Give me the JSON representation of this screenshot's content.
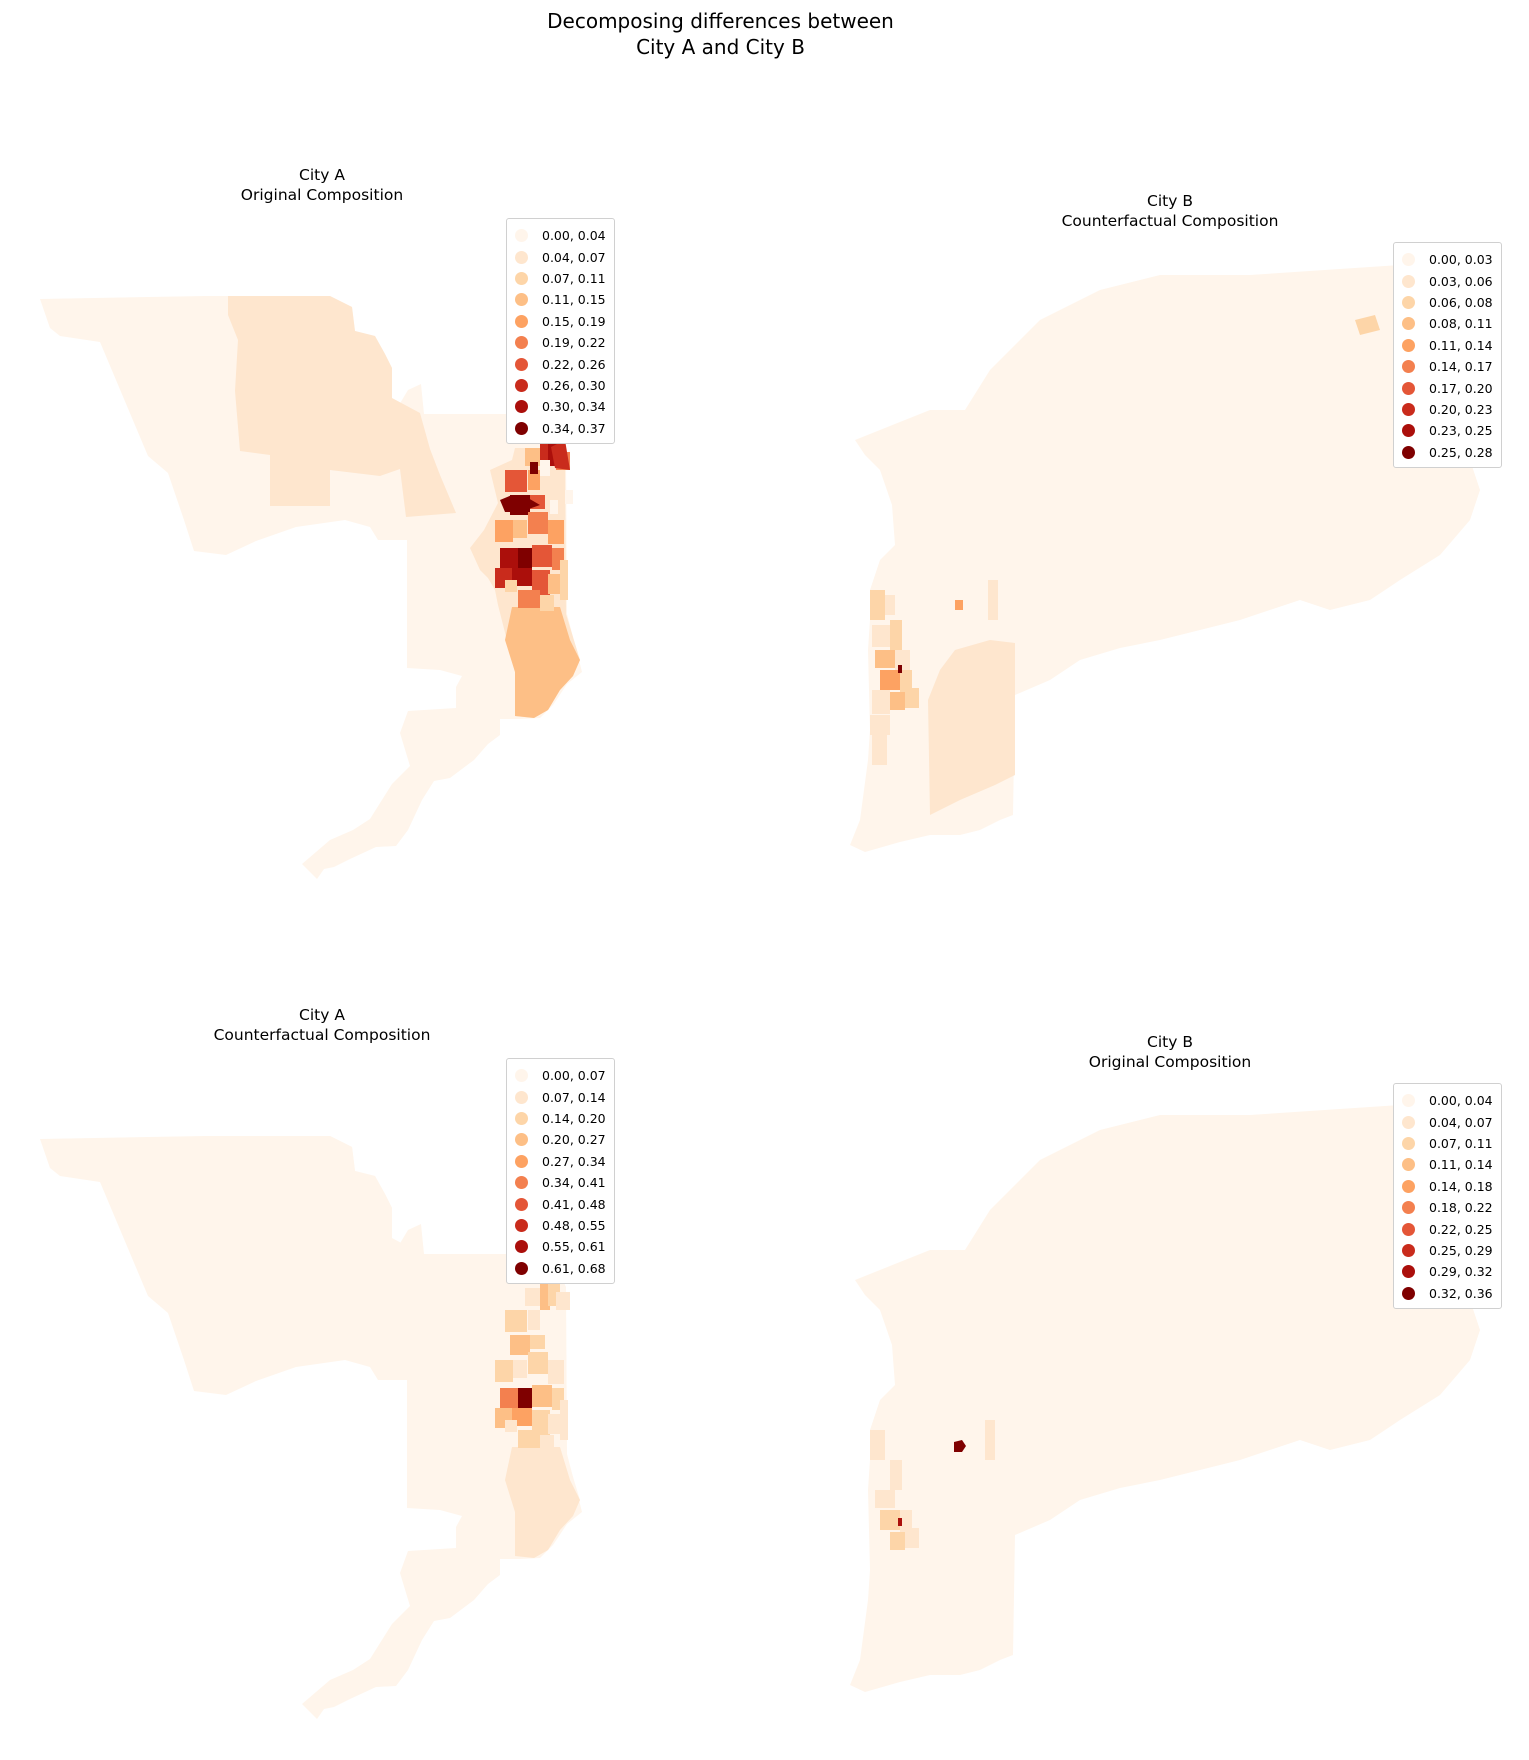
{
  "title_line1": "Decomposing differences between",
  "title_line2": "City A and City B",
  "palette": [
    "#fff5eb",
    "#fee6ce",
    "#fdd5a8",
    "#fdbf86",
    "#fda262",
    "#f3804f",
    "#e45637",
    "#c92b1c",
    "#ab0f0b",
    "#7f0000"
  ],
  "panels": [
    {
      "title_line1": "City A",
      "title_line2": "Original Composition",
      "legend": [
        "0.00, 0.04",
        "0.04, 0.07",
        "0.07, 0.11",
        "0.11, 0.15",
        "0.15, 0.19",
        "0.19, 0.22",
        "0.22, 0.26",
        "0.26, 0.30",
        "0.30, 0.34",
        "0.34, 0.37"
      ]
    },
    {
      "title_line1": "City B",
      "title_line2": "Counterfactual Composition",
      "legend": [
        "0.00, 0.03",
        "0.03, 0.06",
        "0.06, 0.08",
        "0.08, 0.11",
        "0.11, 0.14",
        "0.14, 0.17",
        "0.17, 0.20",
        "0.20, 0.23",
        "0.23, 0.25",
        "0.25, 0.28"
      ]
    },
    {
      "title_line1": "City A",
      "title_line2": "Counterfactual Composition",
      "legend": [
        "0.00, 0.07",
        "0.07, 0.14",
        "0.14, 0.20",
        "0.20, 0.27",
        "0.27, 0.34",
        "0.34, 0.41",
        "0.41, 0.48",
        "0.48, 0.55",
        "0.55, 0.61",
        "0.61, 0.68"
      ]
    },
    {
      "title_line1": "City B",
      "title_line2": "Original Composition",
      "legend": [
        "0.00, 0.04",
        "0.04, 0.07",
        "0.07, 0.11",
        "0.11, 0.14",
        "0.14, 0.18",
        "0.18, 0.22",
        "0.22, 0.25",
        "0.25, 0.29",
        "0.29, 0.32",
        "0.32, 0.36"
      ]
    }
  ]
}
